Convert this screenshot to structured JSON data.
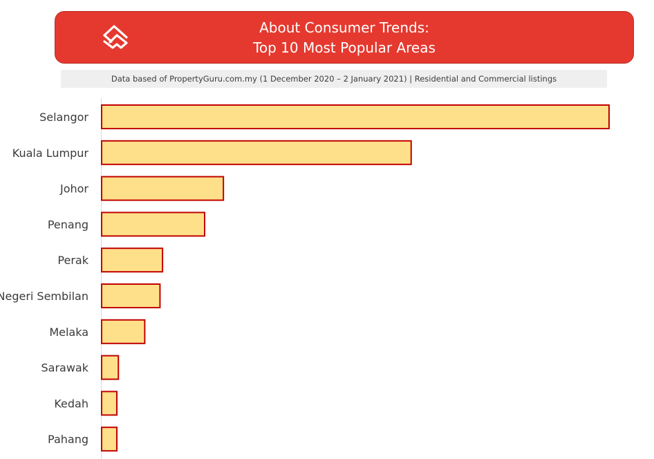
{
  "header": {
    "title_line1": "About Consumer Trends:",
    "title_line2": "Top 10 Most Popular Areas",
    "logo_icon": "propertyguru-logo-icon"
  },
  "subtitle": "Data based of PropertyGuru.com.my (1 December 2020 – 2 January 2021) | Residential and Commercial listings",
  "colors": {
    "banner": "#e5392f",
    "bar_fill": "#ffe08a",
    "bar_stroke": "#c00000",
    "subtitle_bg": "#efefef"
  },
  "chart_data": {
    "type": "bar",
    "orientation": "horizontal",
    "categories": [
      "Selangor",
      "Kuala Lumpur",
      "Johor",
      "Penang",
      "Perak",
      "Negeri Sembilan",
      "Melaka",
      "Sarawak",
      "Kedah",
      "Pahang"
    ],
    "values": [
      100,
      61,
      24,
      20.3,
      12,
      11.5,
      8.5,
      3.3,
      3,
      3
    ],
    "xlim": [
      0,
      100
    ],
    "grid": false,
    "legend": "none",
    "value_axis_visible": false
  }
}
